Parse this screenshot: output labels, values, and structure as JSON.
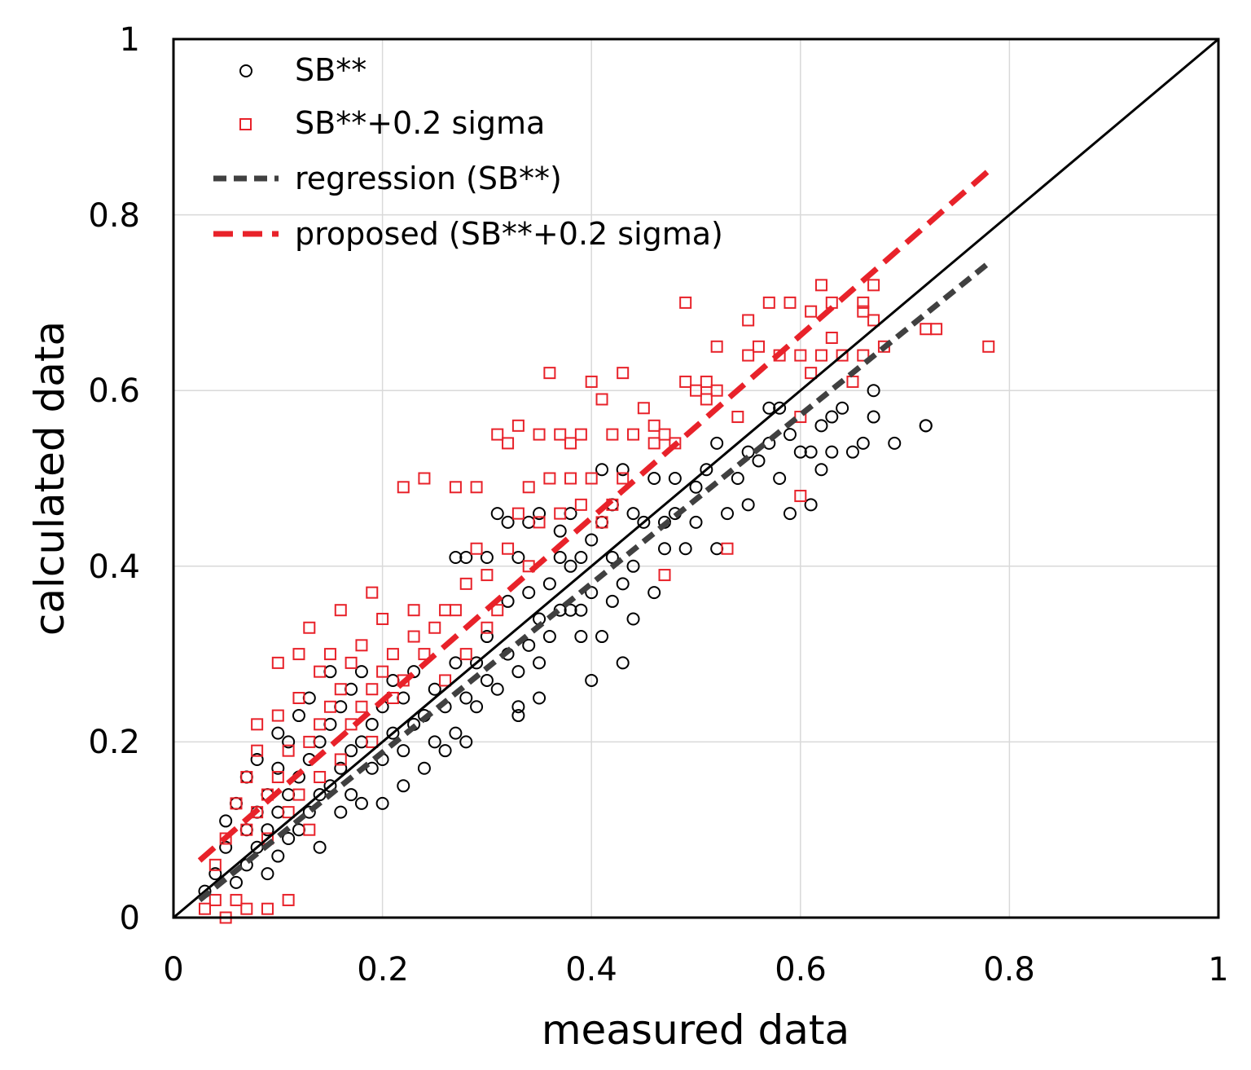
{
  "chart_data": {
    "type": "scatter",
    "xlabel": "measured data",
    "ylabel": "calculated data",
    "xlim": [
      0,
      1
    ],
    "ylim": [
      0,
      1
    ],
    "xticks": [
      "0",
      "0.2",
      "0.4",
      "0.6",
      "0.8",
      "1"
    ],
    "yticks": [
      "0",
      "0.2",
      "0.4",
      "0.6",
      "0.8",
      "1"
    ],
    "grid": true,
    "legend_position": "top-left",
    "colors": {
      "sb": "#000000",
      "sigma": "#e8222a",
      "regression": "#404040",
      "proposed": "#e8222a",
      "identity": "#000000"
    },
    "legend": [
      {
        "label": "SB**",
        "kind": "circle-marker"
      },
      {
        "label": "SB**+0.2 sigma",
        "kind": "square-marker"
      },
      {
        "label": "regression (SB**)",
        "kind": "dashed-line-gray"
      },
      {
        "label": "proposed (SB**+0.2 sigma)",
        "kind": "dashed-line-red"
      }
    ],
    "series": [
      {
        "name": "SB**",
        "marker": "circle",
        "points": [
          [
            0.03,
            0.03
          ],
          [
            0.04,
            0.05
          ],
          [
            0.05,
            0.08
          ],
          [
            0.05,
            0.11
          ],
          [
            0.06,
            0.04
          ],
          [
            0.06,
            0.13
          ],
          [
            0.07,
            0.06
          ],
          [
            0.07,
            0.1
          ],
          [
            0.07,
            0.16
          ],
          [
            0.08,
            0.08
          ],
          [
            0.08,
            0.12
          ],
          [
            0.08,
            0.18
          ],
          [
            0.09,
            0.05
          ],
          [
            0.09,
            0.1
          ],
          [
            0.09,
            0.14
          ],
          [
            0.1,
            0.07
          ],
          [
            0.1,
            0.12
          ],
          [
            0.1,
            0.17
          ],
          [
            0.1,
            0.21
          ],
          [
            0.11,
            0.09
          ],
          [
            0.11,
            0.14
          ],
          [
            0.11,
            0.2
          ],
          [
            0.12,
            0.1
          ],
          [
            0.12,
            0.16
          ],
          [
            0.12,
            0.23
          ],
          [
            0.13,
            0.12
          ],
          [
            0.13,
            0.18
          ],
          [
            0.13,
            0.25
          ],
          [
            0.14,
            0.14
          ],
          [
            0.14,
            0.2
          ],
          [
            0.14,
            0.08
          ],
          [
            0.15,
            0.15
          ],
          [
            0.15,
            0.22
          ],
          [
            0.15,
            0.28
          ],
          [
            0.16,
            0.17
          ],
          [
            0.16,
            0.24
          ],
          [
            0.16,
            0.12
          ],
          [
            0.17,
            0.19
          ],
          [
            0.17,
            0.26
          ],
          [
            0.17,
            0.14
          ],
          [
            0.18,
            0.2
          ],
          [
            0.18,
            0.28
          ],
          [
            0.18,
            0.13
          ],
          [
            0.19,
            0.22
          ],
          [
            0.19,
            0.17
          ],
          [
            0.2,
            0.24
          ],
          [
            0.2,
            0.18
          ],
          [
            0.2,
            0.13
          ],
          [
            0.21,
            0.21
          ],
          [
            0.21,
            0.27
          ],
          [
            0.22,
            0.19
          ],
          [
            0.22,
            0.25
          ],
          [
            0.22,
            0.15
          ],
          [
            0.23,
            0.22
          ],
          [
            0.23,
            0.28
          ],
          [
            0.24,
            0.17
          ],
          [
            0.24,
            0.23
          ],
          [
            0.25,
            0.2
          ],
          [
            0.25,
            0.26
          ],
          [
            0.26,
            0.19
          ],
          [
            0.26,
            0.24
          ],
          [
            0.27,
            0.21
          ],
          [
            0.27,
            0.29
          ],
          [
            0.27,
            0.41
          ],
          [
            0.28,
            0.2
          ],
          [
            0.28,
            0.25
          ],
          [
            0.28,
            0.41
          ],
          [
            0.29,
            0.24
          ],
          [
            0.29,
            0.29
          ],
          [
            0.3,
            0.27
          ],
          [
            0.3,
            0.41
          ],
          [
            0.3,
            0.32
          ],
          [
            0.31,
            0.26
          ],
          [
            0.31,
            0.46
          ],
          [
            0.32,
            0.3
          ],
          [
            0.32,
            0.36
          ],
          [
            0.32,
            0.45
          ],
          [
            0.33,
            0.23
          ],
          [
            0.33,
            0.24
          ],
          [
            0.33,
            0.28
          ],
          [
            0.33,
            0.41
          ],
          [
            0.34,
            0.31
          ],
          [
            0.34,
            0.37
          ],
          [
            0.34,
            0.45
          ],
          [
            0.35,
            0.25
          ],
          [
            0.35,
            0.29
          ],
          [
            0.35,
            0.34
          ],
          [
            0.35,
            0.46
          ],
          [
            0.36,
            0.32
          ],
          [
            0.36,
            0.38
          ],
          [
            0.37,
            0.35
          ],
          [
            0.37,
            0.41
          ],
          [
            0.37,
            0.44
          ],
          [
            0.38,
            0.35
          ],
          [
            0.38,
            0.4
          ],
          [
            0.38,
            0.46
          ],
          [
            0.39,
            0.32
          ],
          [
            0.39,
            0.35
          ],
          [
            0.39,
            0.41
          ],
          [
            0.4,
            0.27
          ],
          [
            0.4,
            0.37
          ],
          [
            0.4,
            0.43
          ],
          [
            0.41,
            0.32
          ],
          [
            0.41,
            0.45
          ],
          [
            0.41,
            0.51
          ],
          [
            0.42,
            0.36
          ],
          [
            0.42,
            0.41
          ],
          [
            0.42,
            0.47
          ],
          [
            0.43,
            0.29
          ],
          [
            0.43,
            0.38
          ],
          [
            0.43,
            0.51
          ],
          [
            0.44,
            0.34
          ],
          [
            0.44,
            0.4
          ],
          [
            0.44,
            0.46
          ],
          [
            0.45,
            0.45
          ],
          [
            0.46,
            0.37
          ],
          [
            0.46,
            0.5
          ],
          [
            0.47,
            0.45
          ],
          [
            0.47,
            0.42
          ],
          [
            0.48,
            0.46
          ],
          [
            0.48,
            0.5
          ],
          [
            0.49,
            0.42
          ],
          [
            0.5,
            0.45
          ],
          [
            0.5,
            0.49
          ],
          [
            0.51,
            0.51
          ],
          [
            0.52,
            0.42
          ],
          [
            0.52,
            0.54
          ],
          [
            0.53,
            0.46
          ],
          [
            0.54,
            0.5
          ],
          [
            0.55,
            0.47
          ],
          [
            0.55,
            0.53
          ],
          [
            0.56,
            0.52
          ],
          [
            0.57,
            0.54
          ],
          [
            0.57,
            0.58
          ],
          [
            0.58,
            0.5
          ],
          [
            0.58,
            0.58
          ],
          [
            0.59,
            0.46
          ],
          [
            0.59,
            0.55
          ],
          [
            0.6,
            0.53
          ],
          [
            0.61,
            0.47
          ],
          [
            0.61,
            0.53
          ],
          [
            0.62,
            0.51
          ],
          [
            0.62,
            0.56
          ],
          [
            0.63,
            0.53
          ],
          [
            0.63,
            0.57
          ],
          [
            0.64,
            0.58
          ],
          [
            0.65,
            0.53
          ],
          [
            0.66,
            0.54
          ],
          [
            0.67,
            0.57
          ],
          [
            0.67,
            0.6
          ],
          [
            0.69,
            0.54
          ],
          [
            0.72,
            0.56
          ],
          [
            0.72,
            0.56
          ]
        ]
      },
      {
        "name": "SB**+0.2 sigma",
        "marker": "square",
        "points": [
          [
            0.03,
            0.01
          ],
          [
            0.04,
            0.06
          ],
          [
            0.04,
            0.02
          ],
          [
            0.05,
            0.09
          ],
          [
            0.05,
            0.0
          ],
          [
            0.06,
            0.13
          ],
          [
            0.06,
            0.02
          ],
          [
            0.07,
            0.1
          ],
          [
            0.07,
            0.16
          ],
          [
            0.07,
            0.01
          ],
          [
            0.08,
            0.12
          ],
          [
            0.08,
            0.22
          ],
          [
            0.08,
            0.19
          ],
          [
            0.09,
            0.14
          ],
          [
            0.09,
            0.01
          ],
          [
            0.09,
            0.09
          ],
          [
            0.1,
            0.16
          ],
          [
            0.1,
            0.23
          ],
          [
            0.1,
            0.29
          ],
          [
            0.11,
            0.12
          ],
          [
            0.11,
            0.02
          ],
          [
            0.11,
            0.19
          ],
          [
            0.12,
            0.25
          ],
          [
            0.12,
            0.14
          ],
          [
            0.12,
            0.3
          ],
          [
            0.13,
            0.2
          ],
          [
            0.13,
            0.33
          ],
          [
            0.13,
            0.1
          ],
          [
            0.14,
            0.22
          ],
          [
            0.14,
            0.28
          ],
          [
            0.14,
            0.16
          ],
          [
            0.15,
            0.24
          ],
          [
            0.15,
            0.3
          ],
          [
            0.16,
            0.18
          ],
          [
            0.16,
            0.26
          ],
          [
            0.16,
            0.35
          ],
          [
            0.17,
            0.22
          ],
          [
            0.17,
            0.29
          ],
          [
            0.18,
            0.24
          ],
          [
            0.18,
            0.31
          ],
          [
            0.19,
            0.26
          ],
          [
            0.19,
            0.37
          ],
          [
            0.19,
            0.2
          ],
          [
            0.2,
            0.28
          ],
          [
            0.2,
            0.34
          ],
          [
            0.21,
            0.25
          ],
          [
            0.21,
            0.3
          ],
          [
            0.22,
            0.27
          ],
          [
            0.22,
            0.49
          ],
          [
            0.23,
            0.32
          ],
          [
            0.23,
            0.35
          ],
          [
            0.24,
            0.3
          ],
          [
            0.24,
            0.5
          ],
          [
            0.25,
            0.33
          ],
          [
            0.26,
            0.35
          ],
          [
            0.26,
            0.27
          ],
          [
            0.27,
            0.35
          ],
          [
            0.27,
            0.49
          ],
          [
            0.28,
            0.38
          ],
          [
            0.28,
            0.3
          ],
          [
            0.29,
            0.42
          ],
          [
            0.29,
            0.49
          ],
          [
            0.3,
            0.33
          ],
          [
            0.3,
            0.39
          ],
          [
            0.31,
            0.55
          ],
          [
            0.31,
            0.35
          ],
          [
            0.32,
            0.54
          ],
          [
            0.32,
            0.42
          ],
          [
            0.33,
            0.56
          ],
          [
            0.33,
            0.46
          ],
          [
            0.34,
            0.49
          ],
          [
            0.34,
            0.4
          ],
          [
            0.35,
            0.55
          ],
          [
            0.35,
            0.45
          ],
          [
            0.36,
            0.62
          ],
          [
            0.36,
            0.5
          ],
          [
            0.37,
            0.55
          ],
          [
            0.37,
            0.46
          ],
          [
            0.38,
            0.5
          ],
          [
            0.38,
            0.54
          ],
          [
            0.39,
            0.47
          ],
          [
            0.39,
            0.55
          ],
          [
            0.4,
            0.61
          ],
          [
            0.4,
            0.5
          ],
          [
            0.41,
            0.59
          ],
          [
            0.41,
            0.45
          ],
          [
            0.42,
            0.55
          ],
          [
            0.42,
            0.47
          ],
          [
            0.43,
            0.62
          ],
          [
            0.43,
            0.5
          ],
          [
            0.44,
            0.55
          ],
          [
            0.45,
            0.58
          ],
          [
            0.46,
            0.56
          ],
          [
            0.46,
            0.54
          ],
          [
            0.47,
            0.39
          ],
          [
            0.47,
            0.55
          ],
          [
            0.48,
            0.54
          ],
          [
            0.49,
            0.7
          ],
          [
            0.49,
            0.61
          ],
          [
            0.5,
            0.6
          ],
          [
            0.51,
            0.61
          ],
          [
            0.51,
            0.59
          ],
          [
            0.52,
            0.65
          ],
          [
            0.52,
            0.6
          ],
          [
            0.53,
            0.42
          ],
          [
            0.54,
            0.57
          ],
          [
            0.55,
            0.64
          ],
          [
            0.55,
            0.68
          ],
          [
            0.56,
            0.65
          ],
          [
            0.57,
            0.7
          ],
          [
            0.58,
            0.64
          ],
          [
            0.59,
            0.7
          ],
          [
            0.6,
            0.64
          ],
          [
            0.6,
            0.48
          ],
          [
            0.61,
            0.69
          ],
          [
            0.61,
            0.62
          ],
          [
            0.62,
            0.72
          ],
          [
            0.62,
            0.64
          ],
          [
            0.63,
            0.7
          ],
          [
            0.63,
            0.66
          ],
          [
            0.64,
            0.64
          ],
          [
            0.65,
            0.61
          ],
          [
            0.66,
            0.64
          ],
          [
            0.66,
            0.7
          ],
          [
            0.67,
            0.68
          ],
          [
            0.68,
            0.65
          ],
          [
            0.72,
            0.67
          ],
          [
            0.73,
            0.67
          ],
          [
            0.78,
            0.65
          ],
          [
            0.6,
            0.57
          ],
          [
            0.66,
            0.69
          ],
          [
            0.67,
            0.72
          ]
        ]
      }
    ],
    "lines": [
      {
        "name": "identity",
        "style": "solid",
        "points": [
          [
            0,
            0
          ],
          [
            1,
            1
          ]
        ]
      },
      {
        "name": "regression (SB**)",
        "style": "dashed",
        "points": [
          [
            0.025,
            0.02
          ],
          [
            0.78,
            0.745
          ]
        ]
      },
      {
        "name": "proposed (SB**+0.2 sigma)",
        "style": "dashed",
        "points": [
          [
            0.025,
            0.065
          ],
          [
            0.78,
            0.85
          ]
        ]
      }
    ]
  }
}
